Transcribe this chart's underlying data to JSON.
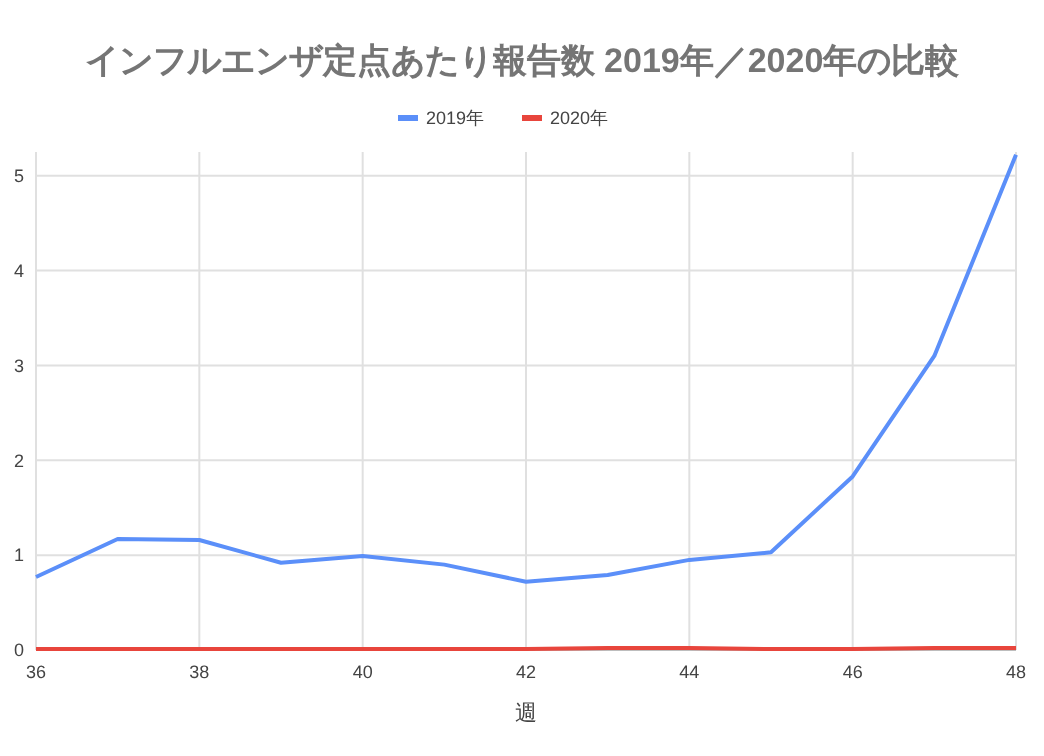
{
  "chart_data": {
    "type": "line",
    "title": "インフルエンザ定点あたり報告数  2019年／2020年の比較",
    "xlabel": "週",
    "x": [
      36,
      37,
      38,
      39,
      40,
      41,
      42,
      43,
      44,
      45,
      46,
      47,
      48
    ],
    "series": [
      {
        "name": "2019年",
        "color": "#5b8ff9",
        "values": [
          0.77,
          1.17,
          1.16,
          0.92,
          0.99,
          0.9,
          0.72,
          0.79,
          0.95,
          1.03,
          1.83,
          3.1,
          5.22
        ]
      },
      {
        "name": "2020年",
        "color": "#e8453c",
        "values": [
          0.01,
          0.01,
          0.01,
          0.01,
          0.01,
          0.01,
          0.01,
          0.02,
          0.02,
          0.01,
          0.01,
          0.02,
          0.02
        ]
      }
    ],
    "xlim": [
      36,
      48
    ],
    "xticks": [
      36,
      38,
      40,
      42,
      44,
      46,
      48
    ],
    "ylim": [
      0,
      5.25
    ],
    "yticks": [
      0,
      1,
      2,
      3,
      4,
      5
    ],
    "grid": true,
    "legend": "top",
    "marker": "none",
    "line_style": "solid"
  }
}
